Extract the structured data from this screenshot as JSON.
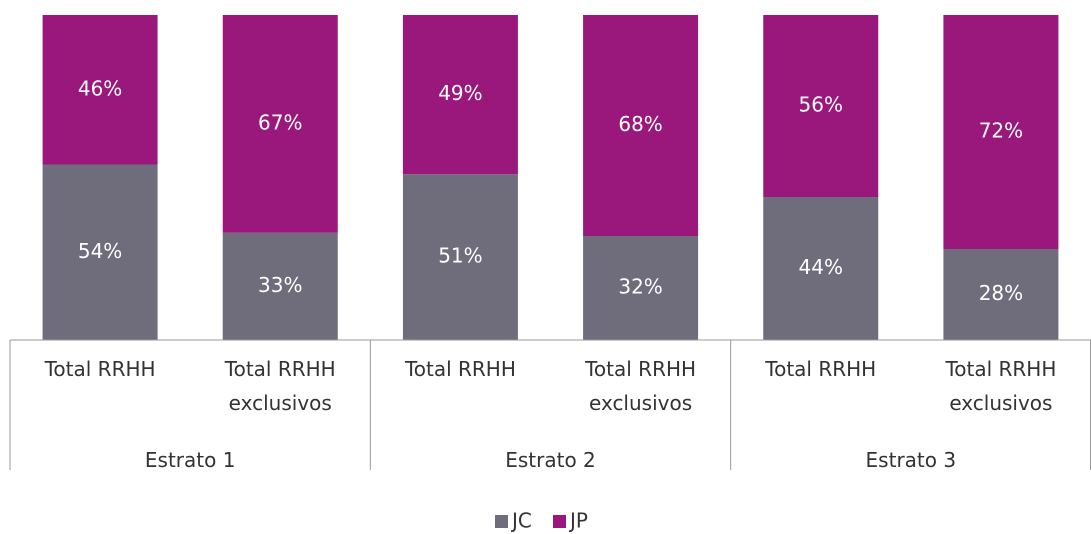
{
  "chart_data": {
    "type": "stacked_bar",
    "categories": [
      "Total RRHH",
      "Total RRHH exclusivos",
      "Total RRHH",
      "Total RRHH exclusivos",
      "Total RRHH",
      "Total RRHH exclusivos"
    ],
    "groups": [
      "Estrato 1",
      "Estrato 2",
      "Estrato 3"
    ],
    "ylim": [
      0,
      100
    ],
    "series": [
      {
        "name": "JC",
        "color": "#6f6c7c",
        "values": [
          54,
          33,
          51,
          32,
          44,
          28
        ],
        "value_labels": [
          "54%",
          "33%",
          "51%",
          "32%",
          "44%",
          "28%"
        ]
      },
      {
        "name": "JP",
        "color": "#9a177c",
        "values": [
          46,
          67,
          49,
          68,
          56,
          72
        ],
        "value_labels": [
          "46%",
          "67%",
          "49%",
          "68%",
          "56%",
          "72%"
        ]
      }
    ],
    "legend": "bottom"
  }
}
